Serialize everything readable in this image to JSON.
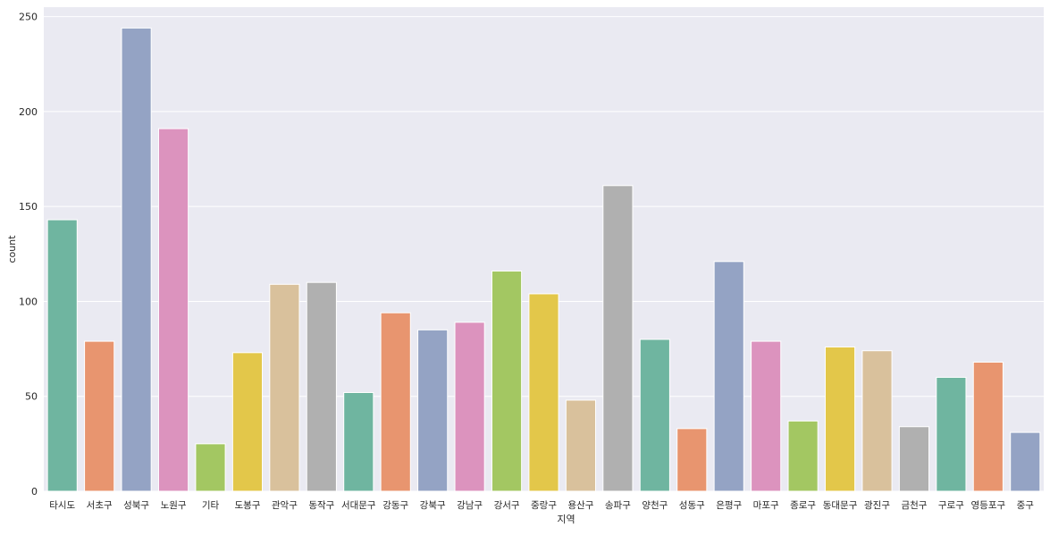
{
  "chart_data": {
    "type": "bar",
    "xlabel": "지역",
    "ylabel": "count",
    "ylim": [
      0,
      255
    ],
    "yticks": [
      0,
      50,
      100,
      150,
      200,
      250
    ],
    "grid": true,
    "categories": [
      "타시도",
      "서초구",
      "성북구",
      "노원구",
      "기타",
      "도봉구",
      "관악구",
      "동작구",
      "서대문구",
      "강동구",
      "강북구",
      "강남구",
      "강서구",
      "중랑구",
      "용산구",
      "송파구",
      "양천구",
      "성동구",
      "은평구",
      "마포구",
      "종로구",
      "동대문구",
      "광진구",
      "금천구",
      "구로구",
      "영등포구",
      "중구"
    ],
    "values": [
      143,
      79,
      244,
      191,
      25,
      73,
      109,
      110,
      52,
      94,
      85,
      89,
      116,
      104,
      48,
      161,
      80,
      33,
      121,
      79,
      37,
      76,
      74,
      34,
      60,
      68,
      31
    ],
    "colors": [
      "#6fb5a0",
      "#e8956f",
      "#94a3c4",
      "#dc93be",
      "#a3c762",
      "#e3c74a",
      "#d9c19c",
      "#b0b0b0",
      "#6fb5a0",
      "#e8956f",
      "#94a3c4",
      "#dc93be",
      "#a3c762",
      "#e3c74a",
      "#d9c19c",
      "#b0b0b0",
      "#6fb5a0",
      "#e8956f",
      "#94a3c4",
      "#dc93be",
      "#a3c762",
      "#e3c74a",
      "#d9c19c",
      "#b0b0b0",
      "#6fb5a0",
      "#e8956f",
      "#94a3c4"
    ],
    "background": "#eaeaf2",
    "grid_color": "#ffffff"
  }
}
